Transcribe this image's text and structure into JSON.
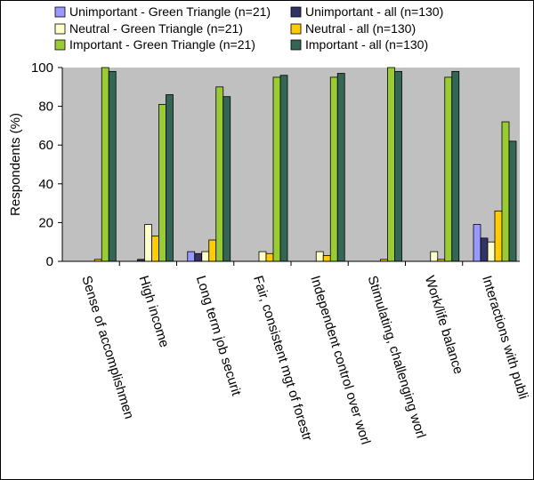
{
  "chart_data": {
    "type": "bar",
    "title": "",
    "xlabel": "",
    "ylabel": "Respondents (%)",
    "ylim": [
      0,
      100
    ],
    "yticks": [
      0,
      20,
      40,
      60,
      80,
      100
    ],
    "grid": false,
    "legend_position": "top",
    "categories": [
      "Sense of accomplishmen",
      "High income",
      "Long term job securit",
      "Fair, consistent mgt of forestr",
      "Independent control over worl",
      "Stimulating, challenging worl",
      "Work/life balance",
      "Interactions with publi"
    ],
    "series": [
      {
        "name": "Unimportant - Green Triangle (n=21)",
        "color": "#9999FF",
        "values": [
          0,
          0,
          5,
          0,
          0,
          0,
          0,
          19
        ]
      },
      {
        "name": "Unimportant - all (n=130)",
        "color": "#333366",
        "values": [
          0,
          1,
          4,
          0,
          0,
          0,
          0,
          12
        ]
      },
      {
        "name": "Neutral - Green Triangle (n=21)",
        "color": "#FFFFCC",
        "values": [
          0,
          19,
          5,
          5,
          5,
          0,
          5,
          10
        ]
      },
      {
        "name": "Neutral - all (n=130)",
        "color": "#FFCC00",
        "values": [
          1,
          13,
          11,
          4,
          3,
          1,
          1,
          26
        ]
      },
      {
        "name": "Important - Green Triangle (n=21)",
        "color": "#99CC33",
        "values": [
          100,
          81,
          90,
          95,
          95,
          100,
          95,
          72
        ]
      },
      {
        "name": "Important - all (n=130)",
        "color": "#336655",
        "values": [
          98,
          86,
          85,
          96,
          97,
          98,
          98,
          62
        ]
      }
    ]
  }
}
